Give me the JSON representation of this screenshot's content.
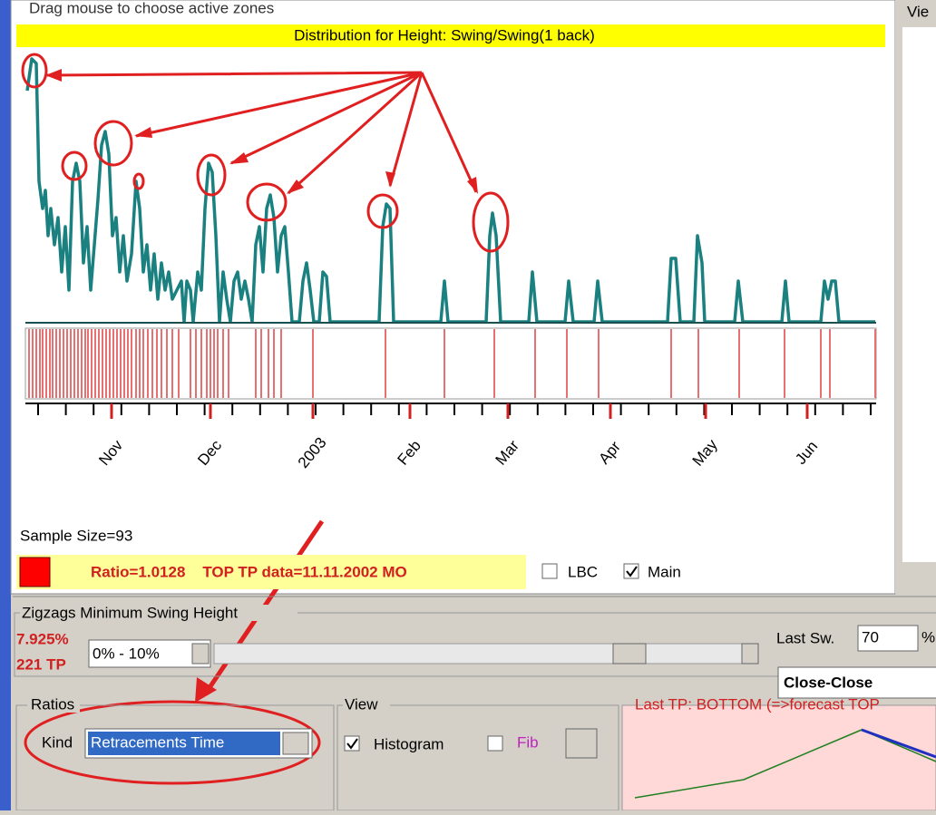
{
  "top_hint": "Drag mouse to choose active zones",
  "chart_title": "Distribution for Height: Swing/Swing(1 back)",
  "axis_labels": [
    "Nov",
    "Dec",
    "2003",
    "Feb",
    "Mar",
    "Apr",
    "May",
    "Jun"
  ],
  "sample_size": "Sample Size=93",
  "status": "Ratio=1.0128    TOP TP data=11.11.2002 MO",
  "checkboxes": {
    "lbc": "LBC",
    "main": "Main"
  },
  "side_panel": "Vie",
  "zigzag": {
    "title": "Zigzags Minimum Swing Height",
    "percent": "7.925%",
    "tp": "221 TP",
    "range": "0% - 10%",
    "last_sw": "Last Sw.",
    "last_sw_value": "70",
    "unit": "%",
    "mode": "Close-Close"
  },
  "ratios": {
    "title": "Ratios",
    "kind_label": "Kind",
    "kind_value": "Retracements Time"
  },
  "view": {
    "title": "View",
    "histogram": "Histogram",
    "fib": "Fib"
  },
  "last_tp": "Last TP: BOTTOM (=>forecast TOP"
}
